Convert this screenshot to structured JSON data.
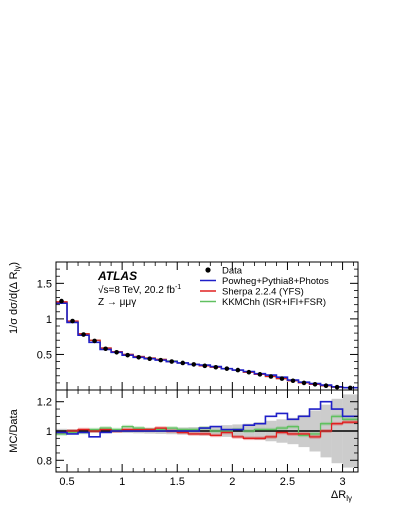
{
  "chart_data": [
    {
      "type": "step-histogram",
      "panel": "main",
      "ylabel": "1/σ dσ/d(Δ R",
      "ylabel_sub": "lγ",
      "ylabel_close": ")",
      "ylim": [
        0,
        1.8
      ],
      "xlim": [
        0.4,
        3.14
      ],
      "yticks": [
        0.5,
        1,
        1.5
      ],
      "ytick_labels": [
        "0.5",
        "1",
        "1.5"
      ],
      "annotation": {
        "experiment": "ATLAS",
        "energy_prefix": "√s=8 TeV, 20.2 fb",
        "energy_sup": "-1",
        "process": "Z → μμγ"
      },
      "legend": {
        "placement": "top-right",
        "entries": [
          {
            "label": "Data",
            "marker": "dot",
            "color": "#000000"
          },
          {
            "label": "Powheg+Pythia8+Photos",
            "marker": "line",
            "color": "#1f1fc8"
          },
          {
            "label": "Sherpa 2.2.4 (YFS)",
            "marker": "line",
            "color": "#e02020"
          },
          {
            "label": "KKMChh (ISR+IFI+FSR)",
            "marker": "line",
            "color": "#60c060"
          }
        ]
      },
      "bin_edges": [
        0.4,
        0.5,
        0.6,
        0.7,
        0.8,
        0.9,
        1.0,
        1.1,
        1.2,
        1.3,
        1.4,
        1.5,
        1.6,
        1.7,
        1.8,
        1.9,
        2.0,
        2.1,
        2.2,
        2.3,
        2.4,
        2.5,
        2.6,
        2.7,
        2.8,
        2.9,
        3.0,
        3.14
      ],
      "data": [
        1.25,
        0.97,
        0.78,
        0.69,
        0.58,
        0.53,
        0.49,
        0.46,
        0.44,
        0.42,
        0.4,
        0.38,
        0.36,
        0.34,
        0.32,
        0.3,
        0.28,
        0.25,
        0.22,
        0.19,
        0.16,
        0.13,
        0.1,
        0.08,
        0.06,
        0.04,
        0.03
      ],
      "series": [
        {
          "name": "Powheg+Pythia8+Photos",
          "color": "#1f1fc8",
          "values": [
            1.22,
            0.95,
            0.77,
            0.67,
            0.57,
            0.53,
            0.49,
            0.46,
            0.44,
            0.42,
            0.4,
            0.38,
            0.36,
            0.35,
            0.33,
            0.3,
            0.28,
            0.26,
            0.23,
            0.21,
            0.18,
            0.14,
            0.11,
            0.09,
            0.07,
            0.045,
            0.032
          ]
        },
        {
          "name": "Sherpa 2.2.4 (YFS)",
          "color": "#e02020",
          "values": [
            1.24,
            0.97,
            0.79,
            0.7,
            0.59,
            0.54,
            0.5,
            0.47,
            0.45,
            0.43,
            0.4,
            0.38,
            0.36,
            0.34,
            0.32,
            0.3,
            0.28,
            0.25,
            0.22,
            0.19,
            0.16,
            0.13,
            0.1,
            0.08,
            0.06,
            0.04,
            0.03
          ]
        },
        {
          "name": "KKMChh (ISR+IFI+FSR)",
          "color": "#60c060",
          "values": [
            1.23,
            0.96,
            0.79,
            0.7,
            0.59,
            0.54,
            0.5,
            0.47,
            0.45,
            0.43,
            0.41,
            0.38,
            0.36,
            0.34,
            0.32,
            0.3,
            0.28,
            0.25,
            0.22,
            0.19,
            0.16,
            0.13,
            0.1,
            0.08,
            0.06,
            0.04,
            0.03
          ]
        }
      ]
    },
    {
      "type": "step-ratio",
      "panel": "ratio",
      "ylabel": "MC/Data",
      "xlabel": "ΔR",
      "xlabel_sub": "lγ",
      "ylim": [
        0.72,
        1.28
      ],
      "xlim": [
        0.4,
        3.14
      ],
      "yticks": [
        0.8,
        1,
        1.2
      ],
      "ytick_labels": [
        "0.8",
        "1",
        "1.2"
      ],
      "xticks": [
        0.5,
        1,
        1.5,
        2,
        2.5,
        3
      ],
      "xtick_labels": [
        "0.5",
        "1",
        "1.5",
        "2",
        "2.5",
        "3"
      ],
      "reference_line": 1.0,
      "uncertainty_band": {
        "color": "#cccccc",
        "half_width": [
          0.015,
          0.012,
          0.012,
          0.012,
          0.012,
          0.012,
          0.014,
          0.016,
          0.018,
          0.02,
          0.022,
          0.024,
          0.026,
          0.03,
          0.034,
          0.04,
          0.045,
          0.05,
          0.06,
          0.07,
          0.08,
          0.09,
          0.11,
          0.14,
          0.18,
          0.22,
          0.25
        ]
      },
      "series": [
        {
          "name": "Powheg+Pythia8+Photos",
          "color": "#1f1fc8",
          "values": [
            0.99,
            0.98,
            0.99,
            0.96,
            0.99,
            1.0,
            1.0,
            1.0,
            1.0,
            1.0,
            1.0,
            1.0,
            1.0,
            1.02,
            1.03,
            1.01,
            1.01,
            1.04,
            1.05,
            1.1,
            1.12,
            1.08,
            1.1,
            1.15,
            1.2,
            1.15,
            1.1
          ]
        },
        {
          "name": "Sherpa 2.2.4 (YFS)",
          "color": "#e02020",
          "values": [
            0.99,
            1.0,
            1.01,
            1.0,
            1.01,
            1.0,
            1.01,
            1.01,
            1.01,
            1.02,
            1.0,
            0.99,
            0.98,
            0.98,
            0.97,
            0.99,
            0.96,
            0.95,
            0.95,
            0.96,
            0.99,
            0.98,
            0.98,
            0.96,
            1.0,
            1.05,
            1.06
          ]
        },
        {
          "name": "KKMChh (ISR+IFI+FSR)",
          "color": "#60c060",
          "values": [
            0.98,
            0.99,
            0.99,
            1.01,
            1.02,
            1.01,
            1.03,
            1.02,
            1.01,
            1.01,
            1.02,
            1.01,
            1.01,
            1.02,
            1.0,
            1.0,
            1.01,
            1.0,
            1.01,
            1.01,
            1.02,
            1.03,
            0.97,
            0.98,
            1.05,
            1.1,
            1.08
          ]
        }
      ]
    }
  ]
}
